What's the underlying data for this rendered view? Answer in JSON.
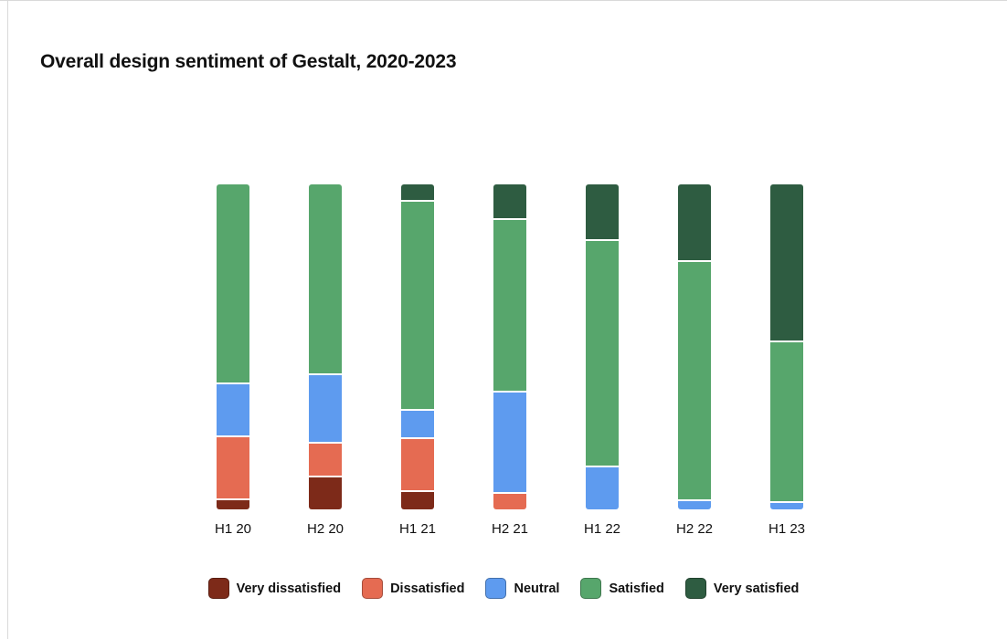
{
  "page": {
    "background": "#ffffff",
    "edge_color": "#d9d9d9"
  },
  "title": "Overall design sentiment of Gestalt, 2020-2023",
  "chart_data": {
    "type": "bar",
    "stacked": true,
    "percent_stacked": true,
    "title": "Overall design sentiment of Gestalt, 2020-2023",
    "categories": [
      "H1 20",
      "H2 20",
      "H1 21",
      "H2 21",
      "H1 22",
      "H2 22",
      "H1 23"
    ],
    "series": [
      {
        "name": "Very dissatisfied",
        "color": "#7d2a19",
        "values": [
          3,
          10,
          5.5,
          0,
          0,
          0,
          0
        ]
      },
      {
        "name": "Dissatisfied",
        "color": "#e56b52",
        "values": [
          19,
          10,
          16,
          5,
          0,
          0,
          0
        ]
      },
      {
        "name": "Neutral",
        "color": "#5e9bef",
        "values": [
          16,
          21,
          8.5,
          31,
          13,
          2.5,
          2
        ]
      },
      {
        "name": "Satisfied",
        "color": "#57a66c",
        "values": [
          62,
          59,
          65,
          53.5,
          70,
          74,
          49.5
        ]
      },
      {
        "name": "Very satisfied",
        "color": "#2e5c41",
        "values": [
          0,
          0,
          5,
          10.5,
          17,
          23.5,
          48.5
        ]
      }
    ],
    "xlabel": "",
    "ylabel": "",
    "ylim": [
      0,
      100
    ],
    "units": "percent",
    "grid": false,
    "y_axis_visible": false,
    "legend_position": "bottom",
    "legend": [
      "Very dissatisfied",
      "Dissatisfied",
      "Neutral",
      "Satisfied",
      "Very satisfied"
    ]
  }
}
